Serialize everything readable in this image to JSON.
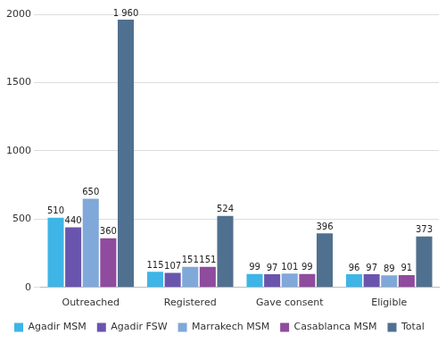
{
  "chart_data": {
    "type": "bar",
    "categories": [
      "Outreached",
      "Registered",
      "Gave consent",
      "Eligible"
    ],
    "series": [
      {
        "name": "Agadir MSM",
        "color": "#3eb5e6",
        "values": [
          510,
          115,
          99,
          96
        ]
      },
      {
        "name": "Agadir FSW",
        "color": "#6a55ae",
        "values": [
          440,
          107,
          97,
          97
        ]
      },
      {
        "name": "Marrakech MSM",
        "color": "#80a8d8",
        "values": [
          650,
          151,
          101,
          89
        ]
      },
      {
        "name": "Casablanca MSM",
        "color": "#8f4b9d",
        "values": [
          360,
          151,
          99,
          91
        ]
      },
      {
        "name": "Total",
        "color": "#50708f",
        "values": [
          1960,
          524,
          396,
          373
        ],
        "value_labels": [
          "1 960",
          "524",
          "396",
          "373"
        ]
      }
    ],
    "ylim": [
      0,
      2000
    ],
    "yticks": [
      0,
      500,
      1000,
      1500,
      2000
    ],
    "grid": true,
    "legend": "bottom",
    "data_labels": true
  }
}
